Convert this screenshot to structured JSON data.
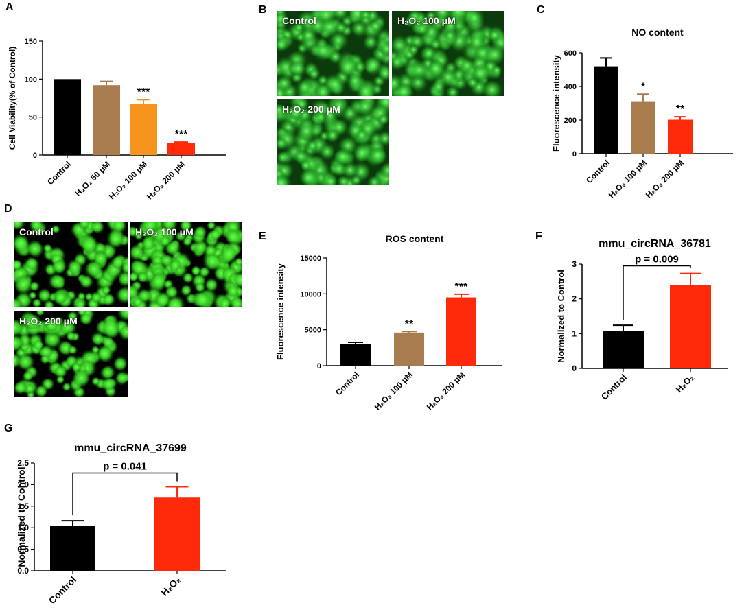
{
  "panels": {
    "A": "A",
    "B": "B",
    "C": "C",
    "D": "D",
    "E": "E",
    "F": "F",
    "G": "G"
  },
  "colors": {
    "black": "#000000",
    "brown": "#a97c50",
    "orange": "#f7941d",
    "red": "#ff2a0a",
    "green_fluor": "#3dff2a"
  },
  "micrographs": {
    "B": [
      {
        "label": "Control"
      },
      {
        "label": "H₂O₂ 100 μM"
      },
      {
        "label": "H₂O₂ 200 μM"
      }
    ],
    "D": [
      {
        "label": "Control"
      },
      {
        "label": "H₂O₂ 100 μM"
      },
      {
        "label": "H₂O₂ 200 μM"
      }
    ]
  },
  "chart_data": [
    {
      "id": "A",
      "type": "bar",
      "title": "",
      "ylabel": "Cell Viability(% of Control)",
      "categories": [
        "Control",
        "H₂O₂ 50 μM",
        "H₂O₂ 100 μM",
        "H₂O₂ 200 μM"
      ],
      "values": [
        100,
        92,
        67,
        16
      ],
      "errors": [
        0,
        5,
        6,
        1
      ],
      "bar_colors": [
        "#000000",
        "#a97c50",
        "#f7941d",
        "#ff2a0a"
      ],
      "significance": [
        "",
        "",
        "***",
        "***"
      ],
      "ylim": [
        0,
        150
      ],
      "yticks": [
        "0",
        "50",
        "100",
        "150"
      ]
    },
    {
      "id": "C",
      "type": "bar",
      "title": "NO content",
      "ylabel": "Fluorescence intensity",
      "categories": [
        "Control",
        "H₂O₂ 100 μM",
        "H₂O₂ 200 μM"
      ],
      "values": [
        520,
        312,
        202
      ],
      "errors": [
        50,
        42,
        18
      ],
      "bar_colors": [
        "#000000",
        "#a97c50",
        "#ff2a0a"
      ],
      "significance": [
        "",
        "*",
        "**"
      ],
      "ylim": [
        0,
        600
      ],
      "yticks": [
        "0",
        "200",
        "400",
        "600"
      ]
    },
    {
      "id": "E",
      "type": "bar",
      "title": "ROS  content",
      "ylabel": "Fluorescence intensity",
      "categories": [
        "Control",
        "H₂O₂ 100 μM",
        "H₂O₂ 200 μM"
      ],
      "values": [
        3000,
        4600,
        9500
      ],
      "errors": [
        250,
        150,
        450
      ],
      "bar_colors": [
        "#000000",
        "#a97c50",
        "#ff2a0a"
      ],
      "significance": [
        "",
        "**",
        "***"
      ],
      "ylim": [
        0,
        15000
      ],
      "yticks": [
        "0",
        "5000",
        "10000",
        "15000"
      ]
    },
    {
      "id": "F",
      "type": "bar",
      "title": "mmu_circRNA_36781",
      "ylabel": "Normalized to Control",
      "categories": [
        "Control",
        "H₂O₂"
      ],
      "values": [
        1.07,
        2.4
      ],
      "errors": [
        0.17,
        0.33
      ],
      "bar_colors": [
        "#000000",
        "#ff2a0a"
      ],
      "significance": [
        "",
        ""
      ],
      "pvalue": "p = 0.009",
      "ylim": [
        0,
        3
      ],
      "yticks": [
        "0",
        "1",
        "2",
        "3"
      ]
    },
    {
      "id": "G",
      "type": "bar",
      "title": "mmu_circRNA_37699",
      "ylabel": "Normalized to Control",
      "categories": [
        "Control",
        "H₂O₂"
      ],
      "values": [
        1.04,
        1.7
      ],
      "errors": [
        0.12,
        0.25
      ],
      "bar_colors": [
        "#000000",
        "#ff2a0a"
      ],
      "significance": [
        "",
        ""
      ],
      "pvalue": "p = 0.041",
      "ylim": [
        0,
        2.5
      ],
      "yticks": [
        "0.0",
        "0.5",
        "1.0",
        "1.5",
        "2.0",
        "2.5"
      ]
    }
  ]
}
